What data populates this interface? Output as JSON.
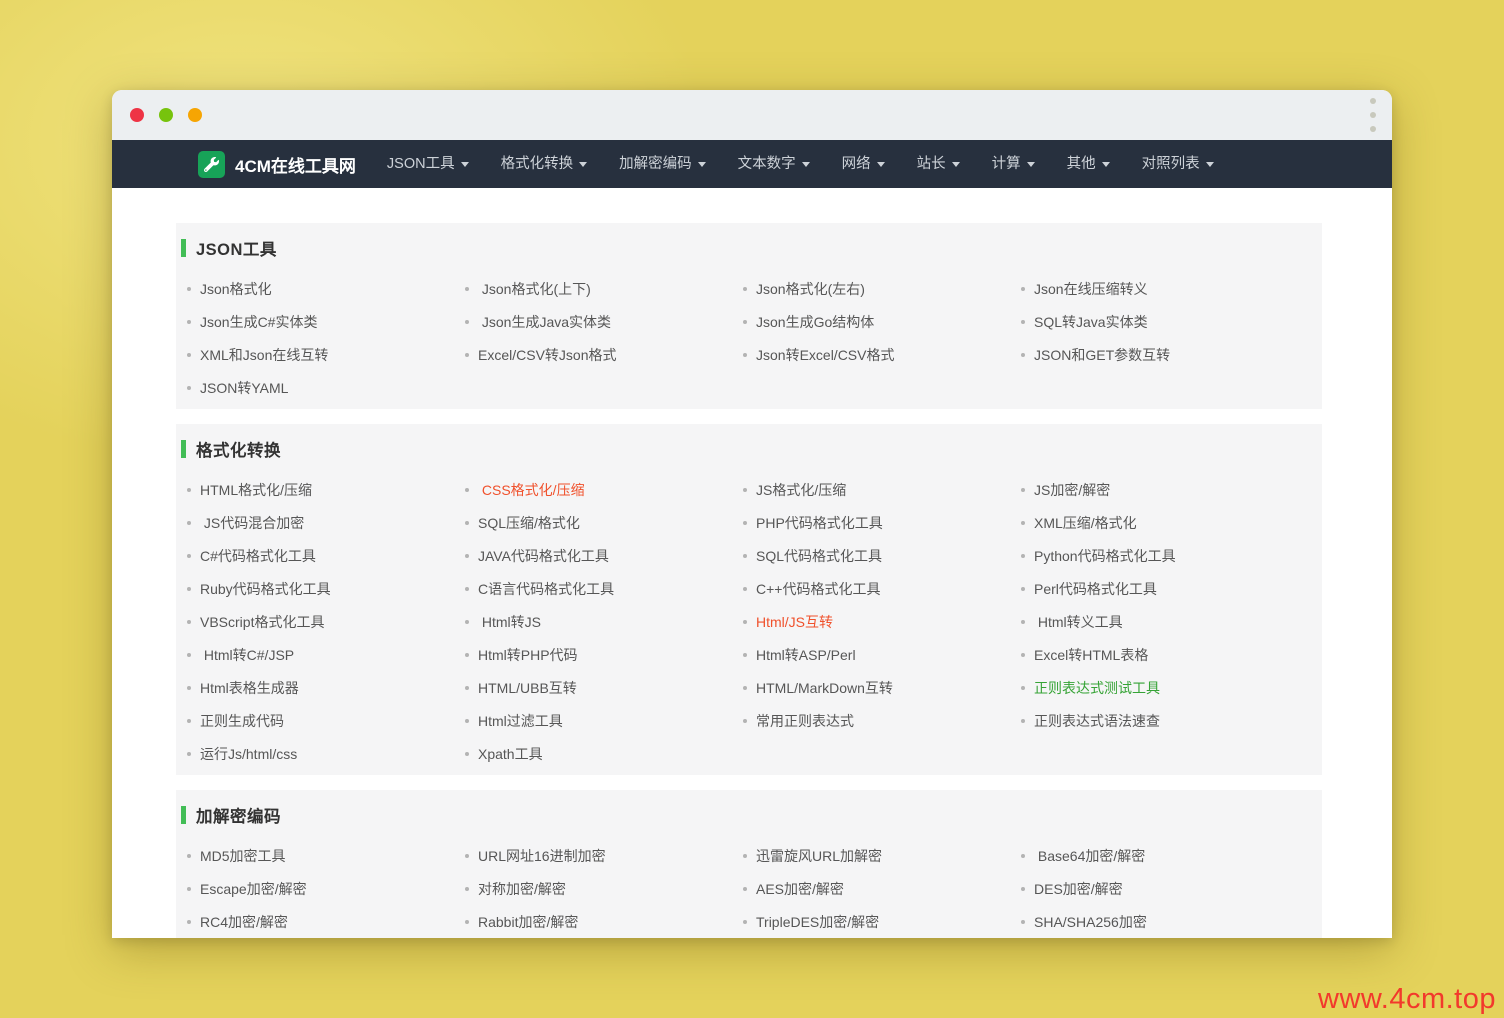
{
  "colors": {
    "desktop_bg": "#e4d25b",
    "titlebar_bg": "#eceff1",
    "nav_bg": "#27303e",
    "logo_bg": "#17a358",
    "section_bar": "#42bd56",
    "card_bg": "#f5f5f6",
    "watermark": "#f2392c",
    "traffic_red": "#ee3445",
    "traffic_green": "#77c30d",
    "traffic_yellow": "#f6a503",
    "red_accent": "#f0512c",
    "green_accent": "#35a335"
  },
  "brand": {
    "name": "4CM在线工具网",
    "logo_icon": "wrench-icon"
  },
  "nav": {
    "items": [
      {
        "id": "json",
        "label": "JSON工具"
      },
      {
        "id": "format",
        "label": "格式化转换"
      },
      {
        "id": "encrypt",
        "label": "加解密编码"
      },
      {
        "id": "text-number",
        "label": "文本数字"
      },
      {
        "id": "network",
        "label": "网络"
      },
      {
        "id": "webmaster",
        "label": "站长"
      },
      {
        "id": "calc",
        "label": "计算"
      },
      {
        "id": "other",
        "label": "其他"
      },
      {
        "id": "reference",
        "label": "对照列表"
      }
    ]
  },
  "sections": [
    {
      "id": "json-tools",
      "title": "JSON工具",
      "items": [
        {
          "label": "Json格式化"
        },
        {
          "label": " Json格式化(上下)"
        },
        {
          "label": "Json格式化(左右)"
        },
        {
          "label": "Json在线压缩转义"
        },
        {
          "label": "Json生成C#实体类"
        },
        {
          "label": " Json生成Java实体类"
        },
        {
          "label": "Json生成Go结构体"
        },
        {
          "label": "SQL转Java实体类"
        },
        {
          "label": "XML和Json在线互转"
        },
        {
          "label": "Excel/CSV转Json格式"
        },
        {
          "label": "Json转Excel/CSV格式"
        },
        {
          "label": "JSON和GET参数互转"
        },
        {
          "label": "JSON转YAML"
        }
      ]
    },
    {
      "id": "format-convert",
      "title": "格式化转换",
      "items": [
        {
          "label": "HTML格式化/压缩"
        },
        {
          "label": " CSS格式化/压缩",
          "accent": "red"
        },
        {
          "label": "JS格式化/压缩"
        },
        {
          "label": "JS加密/解密"
        },
        {
          "label": " JS代码混合加密"
        },
        {
          "label": "SQL压缩/格式化"
        },
        {
          "label": "PHP代码格式化工具"
        },
        {
          "label": "XML压缩/格式化"
        },
        {
          "label": "C#代码格式化工具"
        },
        {
          "label": "JAVA代码格式化工具"
        },
        {
          "label": "SQL代码格式化工具"
        },
        {
          "label": "Python代码格式化工具"
        },
        {
          "label": "Ruby代码格式化工具"
        },
        {
          "label": "C语言代码格式化工具"
        },
        {
          "label": "C++代码格式化工具"
        },
        {
          "label": "Perl代码格式化工具"
        },
        {
          "label": "VBScript格式化工具"
        },
        {
          "label": " Html转JS"
        },
        {
          "label": "Html/JS互转",
          "accent": "red"
        },
        {
          "label": " Html转义工具"
        },
        {
          "label": " Html转C#/JSP"
        },
        {
          "label": "Html转PHP代码"
        },
        {
          "label": "Html转ASP/Perl"
        },
        {
          "label": "Excel转HTML表格"
        },
        {
          "label": "Html表格生成器"
        },
        {
          "label": "HTML/UBB互转"
        },
        {
          "label": "HTML/MarkDown互转"
        },
        {
          "label": "正则表达式测试工具",
          "accent": "green"
        },
        {
          "label": "正则生成代码"
        },
        {
          "label": "Html过滤工具"
        },
        {
          "label": "常用正则表达式"
        },
        {
          "label": "正则表达式语法速查"
        },
        {
          "label": "运行Js/html/css"
        },
        {
          "label": "Xpath工具"
        }
      ]
    },
    {
      "id": "encrypt-encode",
      "title": "加解密编码",
      "items": [
        {
          "label": "MD5加密工具"
        },
        {
          "label": "URL网址16进制加密"
        },
        {
          "label": "迅雷旋风URL加解密"
        },
        {
          "label": " Base64加密/解密"
        },
        {
          "label": "Escape加密/解密"
        },
        {
          "label": "对称加密/解密"
        },
        {
          "label": "AES加密/解密"
        },
        {
          "label": "DES加密/解密"
        },
        {
          "label": "RC4加密/解密"
        },
        {
          "label": "Rabbit加密/解密"
        },
        {
          "label": "TripleDES加密/解密"
        },
        {
          "label": "SHA/SHA256加密"
        }
      ]
    }
  ],
  "watermark": {
    "text": "www.4cm.top"
  }
}
